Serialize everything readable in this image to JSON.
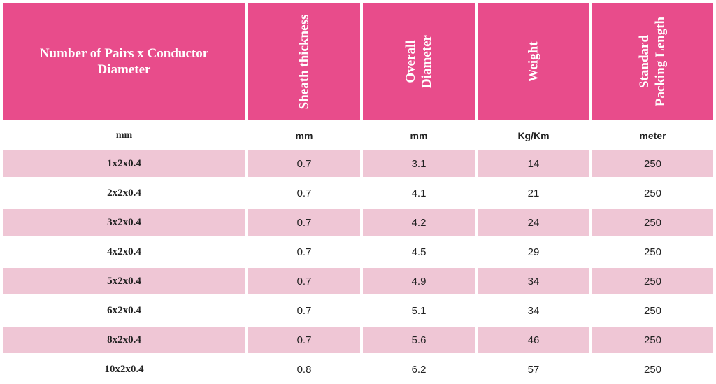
{
  "table": {
    "headers": [
      {
        "lines": [
          "Number of Pairs x Conductor",
          "Diameter"
        ]
      },
      {
        "lines": [
          "Sheath thickness"
        ]
      },
      {
        "lines": [
          "Overall",
          "Diameter"
        ]
      },
      {
        "lines": [
          "Weight"
        ]
      },
      {
        "lines": [
          "Standard",
          "Packing Length"
        ]
      }
    ],
    "units": [
      "mm",
      "mm",
      "mm",
      "Kg/Km",
      "meter"
    ],
    "rows": [
      [
        "1x2x0.4",
        "0.7",
        "3.1",
        "14",
        "250"
      ],
      [
        "2x2x0.4",
        "0.7",
        "4.1",
        "21",
        "250"
      ],
      [
        "3x2x0.4",
        "0.7",
        "4.2",
        "24",
        "250"
      ],
      [
        "4x2x0.4",
        "0.7",
        "4.5",
        "29",
        "250"
      ],
      [
        "5x2x0.4",
        "0.7",
        "4.9",
        "34",
        "250"
      ],
      [
        "6x2x0.4",
        "0.7",
        "5.1",
        "34",
        "250"
      ],
      [
        "8x2x0.4",
        "0.7",
        "5.6",
        "46",
        "250"
      ],
      [
        "10x2x0.4",
        "0.8",
        "6.2",
        "57",
        "250"
      ]
    ],
    "colors": {
      "header_bg": "#e84c8b",
      "header_text": "#ffffff",
      "shaded_row": "#efc6d5"
    }
  }
}
